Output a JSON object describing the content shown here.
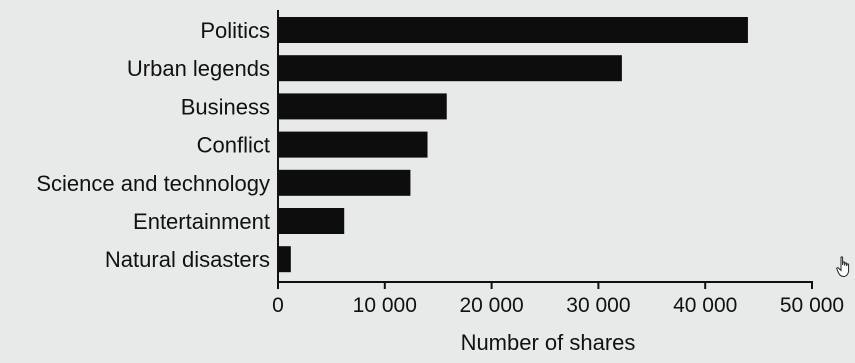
{
  "chart_data": {
    "type": "bar",
    "orientation": "horizontal",
    "categories": [
      "Politics",
      "Urban legends",
      "Business",
      "Conflict",
      "Science and technology",
      "Entertainment",
      "Natural disasters"
    ],
    "values": [
      44000,
      32200,
      15800,
      14000,
      12400,
      6200,
      1200
    ],
    "xlabel": "Number of shares",
    "ylabel": "",
    "xlim": [
      0,
      50000
    ],
    "xticks": [
      0,
      10000,
      20000,
      30000,
      40000,
      50000
    ],
    "xtick_labels": [
      "0",
      "10 000",
      "20 000",
      "30 000",
      "40 000",
      "50 000"
    ],
    "grid": false,
    "bar_color": "#0d0d0d"
  },
  "cursor": {
    "icon": "hand-pointer-icon"
  }
}
